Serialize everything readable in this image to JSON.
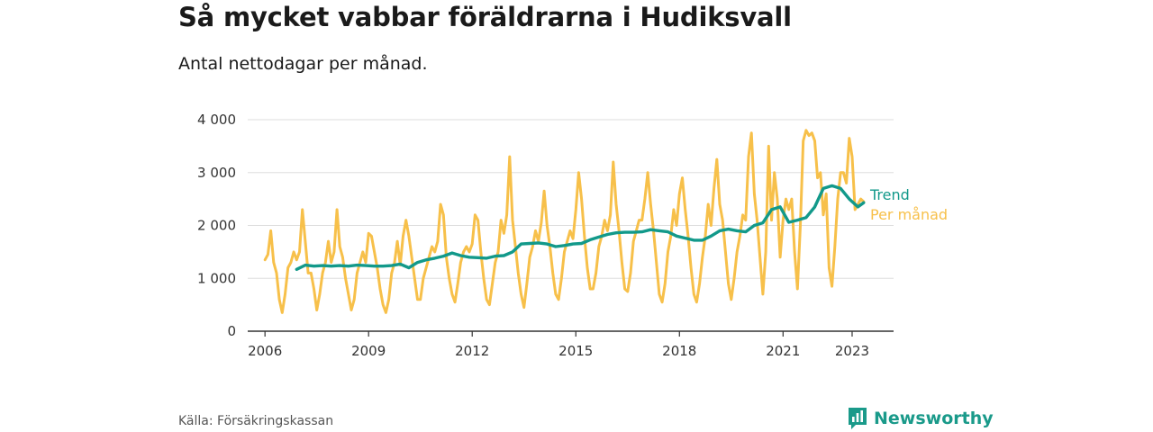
{
  "title": "Så mycket vabbar föräldrarna i Hudiksvall",
  "subtitle": "Antal nettodagar per månad.",
  "source": "Källa: Försäkringskassan",
  "brand": "Newsworthy",
  "colors": {
    "monthly": "#f7c04a",
    "trend": "#12998a",
    "grid": "#dddddd",
    "axis": "#333333",
    "brand": "#1a9a8a"
  },
  "chart_data": {
    "type": "line",
    "ylim": [
      0,
      4000
    ],
    "yticks": [
      0,
      1000,
      2000,
      3000,
      4000
    ],
    "ytick_labels": [
      "0",
      "1 000",
      "2 000",
      "3 000",
      "4 000"
    ],
    "xlim": [
      2005.5,
      2024.2
    ],
    "xticks": [
      2006,
      2009,
      2012,
      2015,
      2018,
      2021,
      2023
    ],
    "xtick_labels": [
      "2006",
      "2009",
      "2012",
      "2015",
      "2018",
      "2021",
      "2023"
    ],
    "grid": true,
    "legend": "right, next to line ends",
    "series": [
      {
        "name": "Per månad",
        "color": "#f7c04a",
        "x": [
          "2006-01",
          "2006-02",
          "2006-03",
          "2006-04",
          "2006-05",
          "2006-06",
          "2006-07",
          "2006-08",
          "2006-09",
          "2006-10",
          "2006-11",
          "2006-12",
          "2007-01",
          "2007-02",
          "2007-03",
          "2007-04",
          "2007-05",
          "2007-06",
          "2007-07",
          "2007-08",
          "2007-09",
          "2007-10",
          "2007-11",
          "2007-12",
          "2008-01",
          "2008-02",
          "2008-03",
          "2008-04",
          "2008-05",
          "2008-06",
          "2008-07",
          "2008-08",
          "2008-09",
          "2008-10",
          "2008-11",
          "2008-12",
          "2009-01",
          "2009-02",
          "2009-03",
          "2009-04",
          "2009-05",
          "2009-06",
          "2009-07",
          "2009-08",
          "2009-09",
          "2009-10",
          "2009-11",
          "2009-12",
          "2010-01",
          "2010-02",
          "2010-03",
          "2010-04",
          "2010-05",
          "2010-06",
          "2010-07",
          "2010-08",
          "2010-09",
          "2010-10",
          "2010-11",
          "2010-12",
          "2011-01",
          "2011-02",
          "2011-03",
          "2011-04",
          "2011-05",
          "2011-06",
          "2011-07",
          "2011-08",
          "2011-09",
          "2011-10",
          "2011-11",
          "2011-12",
          "2012-01",
          "2012-02",
          "2012-03",
          "2012-04",
          "2012-05",
          "2012-06",
          "2012-07",
          "2012-08",
          "2012-09",
          "2012-10",
          "2012-11",
          "2012-12",
          "2013-01",
          "2013-02",
          "2013-03",
          "2013-04",
          "2013-05",
          "2013-06",
          "2013-07",
          "2013-08",
          "2013-09",
          "2013-10",
          "2013-11",
          "2013-12",
          "2014-01",
          "2014-02",
          "2014-03",
          "2014-04",
          "2014-05",
          "2014-06",
          "2014-07",
          "2014-08",
          "2014-09",
          "2014-10",
          "2014-11",
          "2014-12",
          "2015-01",
          "2015-02",
          "2015-03",
          "2015-04",
          "2015-05",
          "2015-06",
          "2015-07",
          "2015-08",
          "2015-09",
          "2015-10",
          "2015-11",
          "2015-12",
          "2016-01",
          "2016-02",
          "2016-03",
          "2016-04",
          "2016-05",
          "2016-06",
          "2016-07",
          "2016-08",
          "2016-09",
          "2016-10",
          "2016-11",
          "2016-12",
          "2017-01",
          "2017-02",
          "2017-03",
          "2017-04",
          "2017-05",
          "2017-06",
          "2017-07",
          "2017-08",
          "2017-09",
          "2017-10",
          "2017-11",
          "2017-12",
          "2018-01",
          "2018-02",
          "2018-03",
          "2018-04",
          "2018-05",
          "2018-06",
          "2018-07",
          "2018-08",
          "2018-09",
          "2018-10",
          "2018-11",
          "2018-12",
          "2019-01",
          "2019-02",
          "2019-03",
          "2019-04",
          "2019-05",
          "2019-06",
          "2019-07",
          "2019-08",
          "2019-09",
          "2019-10",
          "2019-11",
          "2019-12",
          "2020-01",
          "2020-02",
          "2020-03",
          "2020-04",
          "2020-05",
          "2020-06",
          "2020-07",
          "2020-08",
          "2020-09",
          "2020-10",
          "2020-11",
          "2020-12",
          "2021-01",
          "2021-02",
          "2021-03",
          "2021-04",
          "2021-05",
          "2021-06",
          "2021-07",
          "2021-08",
          "2021-09",
          "2021-10",
          "2021-11",
          "2021-12",
          "2022-01",
          "2022-02",
          "2022-03",
          "2022-04",
          "2022-05",
          "2022-06",
          "2022-07",
          "2022-08",
          "2022-09",
          "2022-10",
          "2022-11",
          "2022-12",
          "2023-01",
          "2023-02",
          "2023-03",
          "2023-04",
          "2023-05"
        ],
        "values": [
          1350,
          1450,
          1900,
          1300,
          1100,
          600,
          350,
          700,
          1200,
          1300,
          1500,
          1350,
          1500,
          2300,
          1700,
          1100,
          1100,
          800,
          400,
          700,
          1100,
          1300,
          1700,
          1300,
          1500,
          2300,
          1600,
          1400,
          1000,
          700,
          400,
          600,
          1100,
          1300,
          1500,
          1300,
          1850,
          1800,
          1500,
          1200,
          800,
          500,
          350,
          600,
          1100,
          1300,
          1700,
          1250,
          1800,
          2100,
          1800,
          1400,
          1000,
          600,
          600,
          1000,
          1200,
          1400,
          1600,
          1500,
          1700,
          2400,
          2200,
          1400,
          1000,
          700,
          550,
          900,
          1300,
          1500,
          1600,
          1500,
          1650,
          2200,
          2100,
          1500,
          1000,
          600,
          500,
          900,
          1300,
          1500,
          2100,
          1850,
          2200,
          3300,
          2100,
          1600,
          1100,
          700,
          450,
          900,
          1400,
          1600,
          1900,
          1700,
          2050,
          2650,
          2000,
          1600,
          1100,
          700,
          600,
          1000,
          1500,
          1700,
          1900,
          1750,
          2300,
          3000,
          2500,
          1800,
          1200,
          800,
          800,
          1100,
          1600,
          1800,
          2100,
          1900,
          2200,
          3200,
          2400,
          1900,
          1300,
          800,
          750,
          1100,
          1700,
          1900,
          2100,
          2100,
          2500,
          3000,
          2400,
          1900,
          1300,
          700,
          550,
          900,
          1500,
          1800,
          2300,
          2000,
          2600,
          2900,
          2300,
          1800,
          1200,
          700,
          550,
          900,
          1400,
          1800,
          2400,
          2000,
          2700,
          3250,
          2400,
          2100,
          1500,
          900,
          600,
          1000,
          1500,
          1800,
          2200,
          2100,
          3300,
          3750,
          2600,
          2100,
          1400,
          700,
          1500,
          3500,
          2100,
          3000,
          2500,
          1400,
          2100,
          2500,
          2300,
          2500,
          1500,
          800,
          2000,
          3600,
          3800,
          3700,
          3750,
          3600,
          2900,
          3000,
          2200,
          2600,
          1200,
          850,
          1600,
          2500,
          3000,
          3000,
          2800,
          3650,
          3300,
          2300,
          2400,
          2500,
          2450
        ],
        "label": "Per månad"
      },
      {
        "name": "Trend",
        "color": "#12998a",
        "x": [
          "2006-12",
          "2007-03",
          "2007-06",
          "2007-09",
          "2007-12",
          "2008-03",
          "2008-06",
          "2008-09",
          "2008-12",
          "2009-03",
          "2009-06",
          "2009-09",
          "2009-12",
          "2010-03",
          "2010-06",
          "2010-09",
          "2010-12",
          "2011-03",
          "2011-06",
          "2011-09",
          "2011-12",
          "2012-03",
          "2012-06",
          "2012-09",
          "2012-12",
          "2013-03",
          "2013-06",
          "2013-09",
          "2013-12",
          "2014-03",
          "2014-06",
          "2014-09",
          "2014-12",
          "2015-03",
          "2015-06",
          "2015-09",
          "2015-12",
          "2016-03",
          "2016-06",
          "2016-09",
          "2016-12",
          "2017-03",
          "2017-06",
          "2017-09",
          "2017-12",
          "2018-03",
          "2018-06",
          "2018-09",
          "2018-12",
          "2019-03",
          "2019-06",
          "2019-09",
          "2019-12",
          "2020-03",
          "2020-06",
          "2020-09",
          "2020-12",
          "2021-03",
          "2021-06",
          "2021-09",
          "2021-12",
          "2022-03",
          "2022-06",
          "2022-09",
          "2022-12",
          "2023-03",
          "2023-05"
        ],
        "values": [
          1170,
          1250,
          1230,
          1240,
          1230,
          1240,
          1230,
          1250,
          1240,
          1230,
          1230,
          1240,
          1270,
          1200,
          1300,
          1350,
          1380,
          1420,
          1480,
          1430,
          1400,
          1390,
          1380,
          1420,
          1430,
          1500,
          1650,
          1660,
          1670,
          1650,
          1600,
          1620,
          1650,
          1660,
          1730,
          1780,
          1830,
          1860,
          1870,
          1870,
          1880,
          1920,
          1900,
          1880,
          1800,
          1760,
          1720,
          1720,
          1800,
          1900,
          1930,
          1900,
          1880,
          2000,
          2050,
          2300,
          2350,
          2060,
          2100,
          2150,
          2350,
          2700,
          2750,
          2700,
          2500,
          2350,
          2430
        ],
        "label": "Trend"
      }
    ]
  }
}
